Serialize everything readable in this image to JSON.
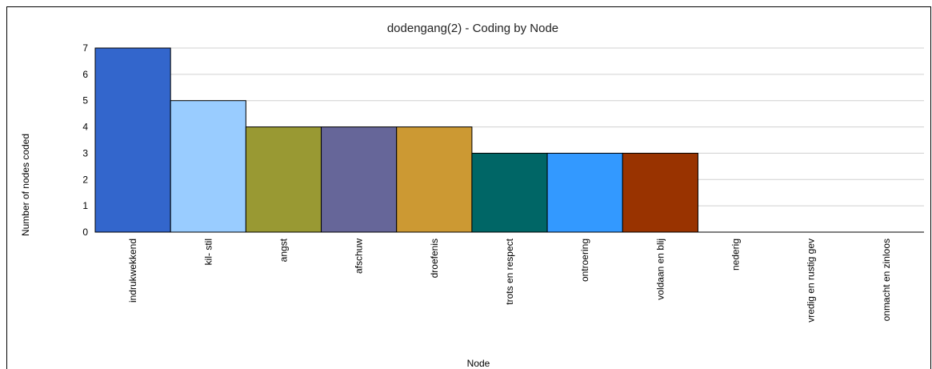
{
  "chart_data": {
    "type": "bar",
    "title": "dodengang(2) - Coding by Node",
    "xlabel": "Node",
    "ylabel": "Number of nodes coded",
    "ylim": [
      0,
      7
    ],
    "yticks": [
      0,
      1,
      2,
      3,
      4,
      5,
      6,
      7
    ],
    "grid": true,
    "categories": [
      "indrukwekkend",
      "kil- stil",
      "angst",
      "afschuw",
      "droefenis",
      "trots en respect",
      "ontroering",
      "voldaan en blij",
      "nederig",
      "vredig en rustig gev",
      "onmacht en zinloos"
    ],
    "values": [
      7,
      5,
      4,
      4,
      4,
      3,
      3,
      3,
      0,
      0,
      0
    ],
    "colors": [
      "#3366cc",
      "#99ccff",
      "#999933",
      "#666699",
      "#cc9933",
      "#006666",
      "#3399ff",
      "#993300",
      "#999999",
      "#999999",
      "#999999"
    ]
  }
}
